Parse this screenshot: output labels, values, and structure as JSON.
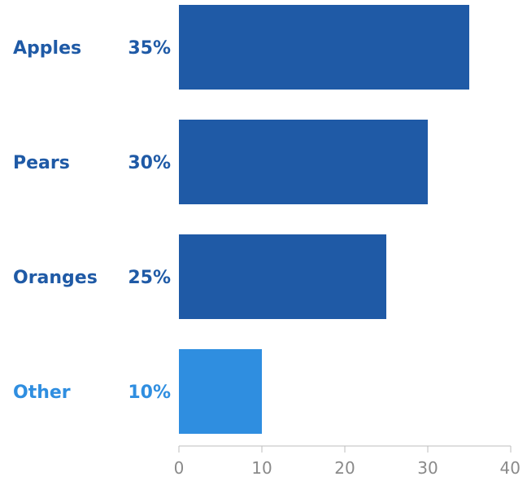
{
  "chart_data": {
    "type": "bar",
    "orientation": "horizontal",
    "title": "",
    "xlabel": "",
    "ylabel": "",
    "categories": [
      "Apples",
      "Pears",
      "Oranges",
      "Other"
    ],
    "values": [
      35,
      30,
      25,
      10
    ],
    "value_labels": [
      "35%",
      "30%",
      "25%",
      "10%"
    ],
    "xlim": [
      0,
      40
    ],
    "x_ticks": [
      0,
      10,
      20,
      30,
      40
    ],
    "x_tick_labels": [
      "0",
      "10",
      "20",
      "30",
      "40"
    ],
    "grid": false,
    "legend": "none",
    "colors": {
      "primary_bar": "#1f5aa6",
      "highlight_bar": "#2f8ee0",
      "primary_label": "#1f5aa6",
      "highlight_label": "#2f8ee0",
      "axis": "#bdbdbd"
    },
    "highlight_categories": [
      "Other"
    ]
  }
}
